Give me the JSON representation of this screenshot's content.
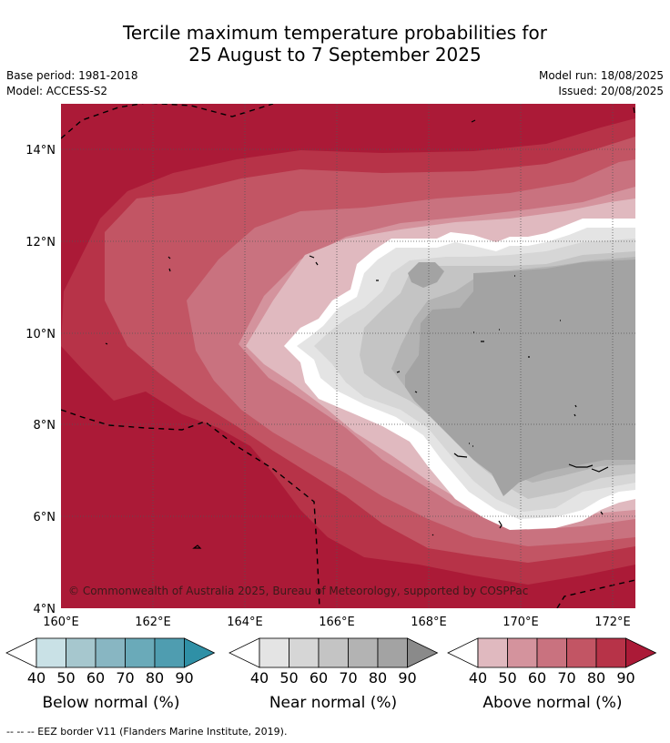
{
  "title": {
    "line1": "Tercile maximum temperature probabilities for",
    "line2": "25 August to 7 September 2025"
  },
  "meta": {
    "base_period": "Base period: 1981-2018",
    "model": "Model: ACCESS-S2",
    "model_run": "Model run: 18/08/2025",
    "issued": "Issued: 20/08/2025"
  },
  "map": {
    "lon_ticks": [
      "160°E",
      "162°E",
      "164°E",
      "166°E",
      "168°E",
      "170°E",
      "172°E"
    ],
    "lat_ticks": [
      "14°N",
      "12°N",
      "10°N",
      "8°N",
      "6°N",
      "4°N"
    ],
    "lon_range": [
      160,
      172.5
    ],
    "lat_range": [
      4,
      15
    ],
    "copyright": "© Commonwealth of Australia 2025, Bureau of Meteorology, supported by COSPPac",
    "colors": {
      "above": [
        "#e0b9bf",
        "#d4939d",
        "#c9727f",
        "#c25564",
        "#b73348",
        "#ab1a37"
      ],
      "near": [
        "#e4e4e4",
        "#d6d6d6",
        "#c4c4c4",
        "#b3b3b3",
        "#a3a3a3",
        "#8a8a8a"
      ],
      "below": [
        "#c9e1e6",
        "#a6c7ce",
        "#88b6c2",
        "#6aaab9",
        "#4f9db0",
        "#2f90a6"
      ]
    }
  },
  "legends": [
    {
      "label": "Below normal (%)",
      "ticks": [
        "40",
        "50",
        "60",
        "70",
        "80",
        "90"
      ]
    },
    {
      "label": "Near normal (%)",
      "ticks": [
        "40",
        "50",
        "60",
        "70",
        "80",
        "90"
      ]
    },
    {
      "label": "Above normal (%)",
      "ticks": [
        "40",
        "50",
        "60",
        "70",
        "80",
        "90"
      ]
    }
  ],
  "footnote": "--  --  -- EEZ border V11 (Flanders Marine Institute, 2019)."
}
